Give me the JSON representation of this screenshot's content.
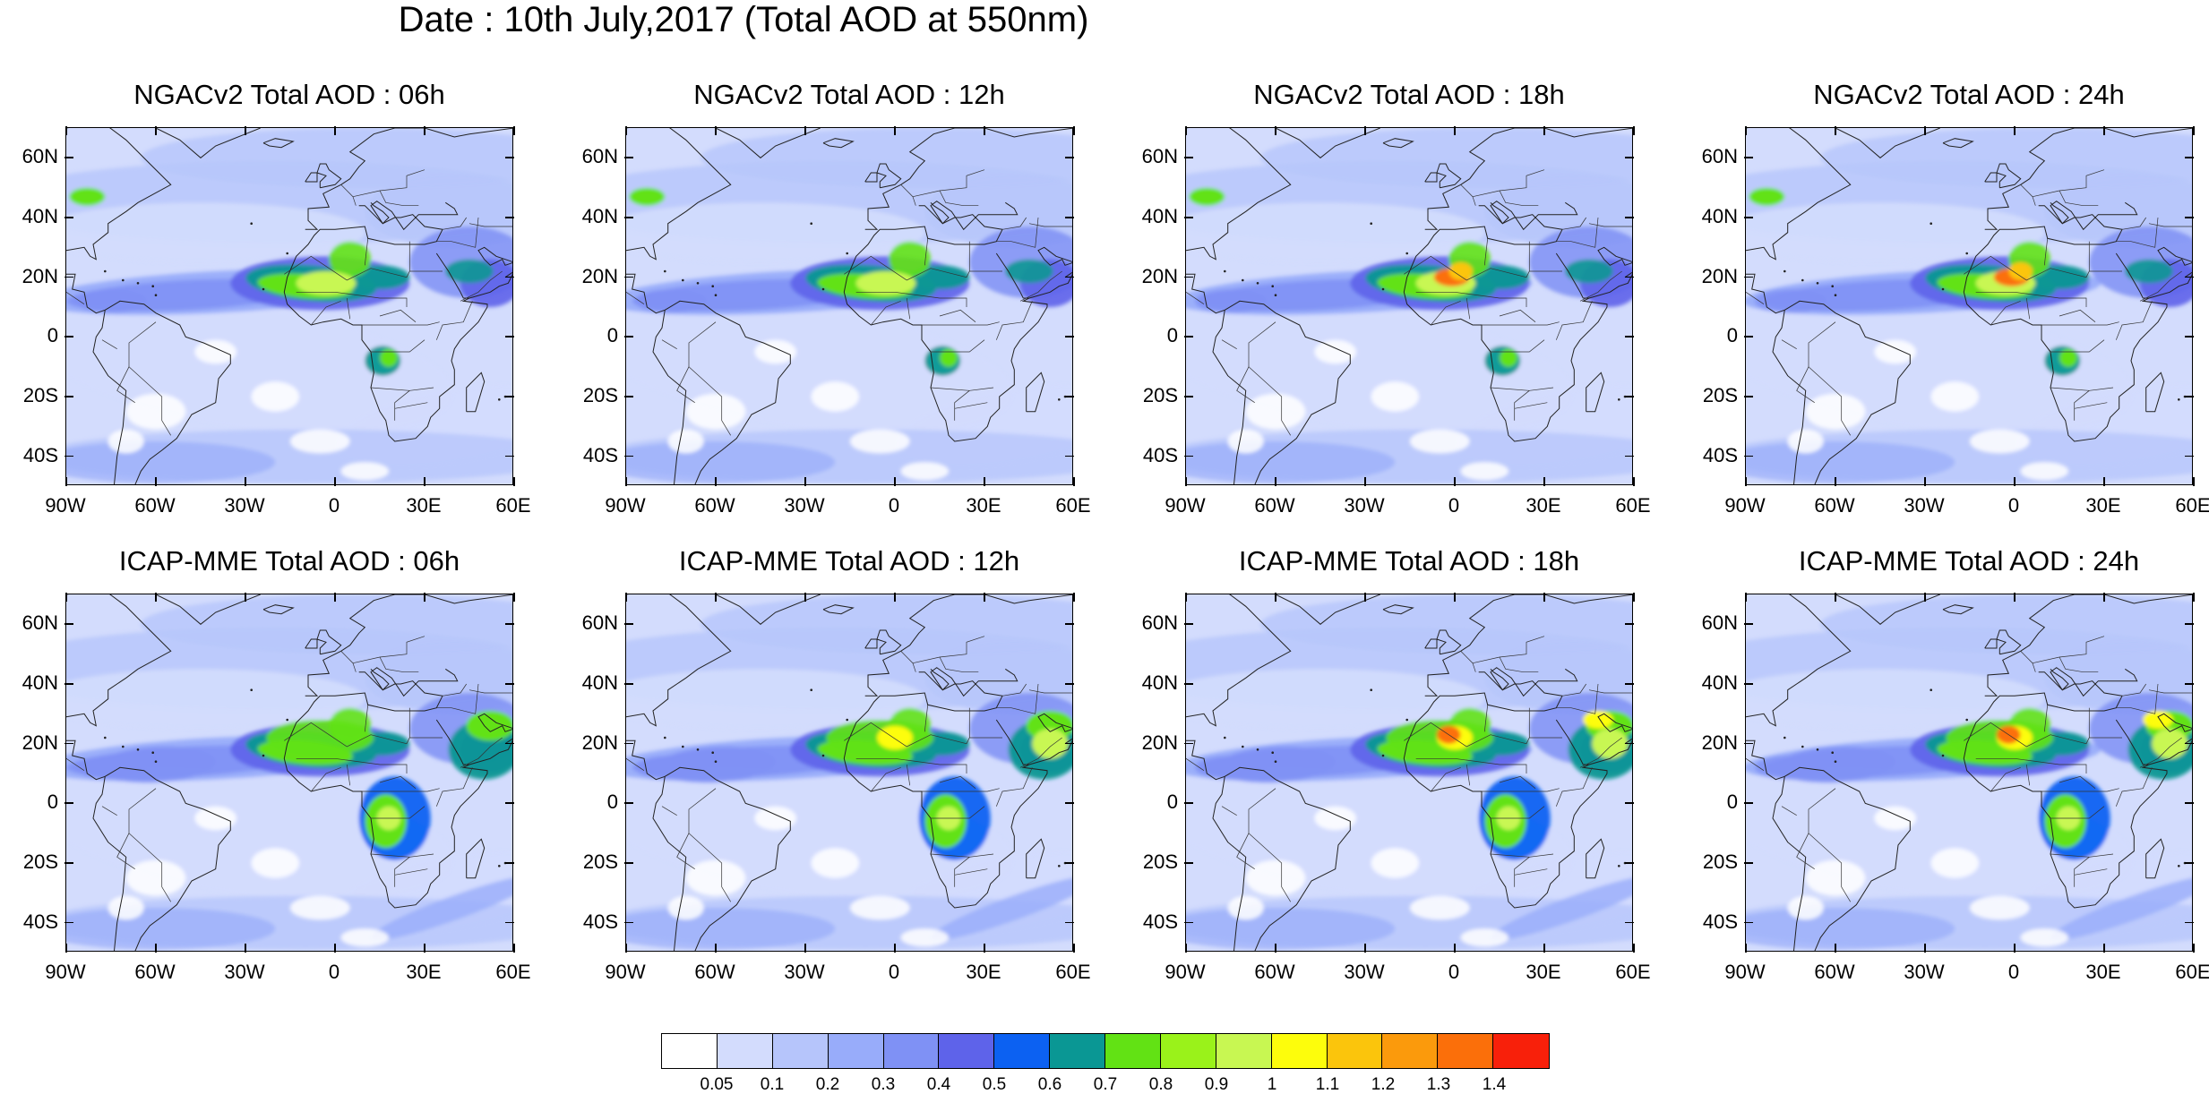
{
  "title": "Date : 10th July,2017 (Total AOD at 550nm)",
  "panels": [
    {
      "id": "ngac-06",
      "title": "NGACv2 Total AOD : 06h",
      "model": "ngac"
    },
    {
      "id": "ngac-12",
      "title": "NGACv2 Total AOD : 12h",
      "model": "ngac"
    },
    {
      "id": "ngac-18",
      "title": "NGACv2 Total AOD : 18h",
      "model": "ngac"
    },
    {
      "id": "ngac-24",
      "title": "NGACv2 Total AOD : 24h",
      "model": "ngac"
    },
    {
      "id": "icap-06",
      "title": "ICAP-MME Total AOD : 06h",
      "model": "icap"
    },
    {
      "id": "icap-12",
      "title": "ICAP-MME Total AOD : 12h",
      "model": "icap"
    },
    {
      "id": "icap-18",
      "title": "ICAP-MME Total AOD : 18h",
      "model": "icap"
    },
    {
      "id": "icap-24",
      "title": "ICAP-MME Total AOD : 24h",
      "model": "icap"
    }
  ],
  "lat_ticks": [
    "60N",
    "40N",
    "20N",
    "0",
    "20S",
    "40S"
  ],
  "lon_ticks": [
    "90W",
    "60W",
    "30W",
    "0",
    "30E",
    "60E"
  ],
  "colorbar": {
    "levels": [
      "0.05",
      "0.1",
      "0.2",
      "0.3",
      "0.4",
      "0.5",
      "0.6",
      "0.7",
      "0.8",
      "0.9",
      "1",
      "1.1",
      "1.2",
      "1.3",
      "1.4"
    ],
    "colors": [
      "#ffffff",
      "#d3dcfd",
      "#b6c5fb",
      "#98acfa",
      "#7f91f5",
      "#5e63ea",
      "#0c61f2",
      "#0a9794",
      "#62e214",
      "#9af21a",
      "#c8f752",
      "#fdfd0c",
      "#fbc50c",
      "#fb9a0c",
      "#fb6f0a",
      "#f8200a"
    ]
  }
}
